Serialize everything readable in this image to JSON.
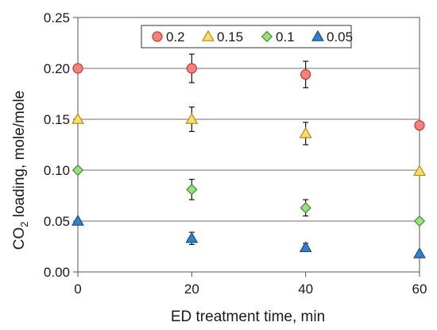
{
  "chart_data": {
    "type": "scatter",
    "title": "",
    "xlabel": "ED treatment time, min",
    "ylabel": {
      "prefix": "CO",
      "subscript": "2",
      "suffix": " loading, mole/mole"
    },
    "xlim": [
      0,
      60
    ],
    "ylim": [
      0,
      0.25
    ],
    "x_ticks": [
      0,
      20,
      40,
      60
    ],
    "x_tick_labels": [
      "0",
      "20",
      "40",
      "60"
    ],
    "y_ticks": [
      0,
      0.05,
      0.1,
      0.15,
      0.2,
      0.25
    ],
    "y_tick_labels": [
      "0.00",
      "0.05",
      "0.10",
      "0.15",
      "0.20",
      "0.25"
    ],
    "reference_lines": [
      0.05,
      0.1,
      0.15,
      0.2
    ],
    "reference_line_color": "#8c8c8c",
    "legend": {
      "position": "top-center",
      "border": true
    },
    "series": [
      {
        "name": "0.2",
        "marker": "circle",
        "fill": "#f48080",
        "stroke": "#c0392b",
        "points": [
          {
            "x": 0,
            "y": 0.2,
            "err": null
          },
          {
            "x": 20,
            "y": 0.2,
            "err": 0.014
          },
          {
            "x": 40,
            "y": 0.194,
            "err": 0.013
          },
          {
            "x": 60,
            "y": 0.144,
            "err": null
          }
        ]
      },
      {
        "name": "0.15",
        "marker": "triangle",
        "fill": "#ffe066",
        "stroke": "#b8860b",
        "points": [
          {
            "x": 0,
            "y": 0.15,
            "err": null
          },
          {
            "x": 20,
            "y": 0.15,
            "err": 0.012
          },
          {
            "x": 40,
            "y": 0.136,
            "err": 0.011
          },
          {
            "x": 60,
            "y": 0.099,
            "err": null
          }
        ]
      },
      {
        "name": "0.1",
        "marker": "diamond",
        "fill": "#9be07f",
        "stroke": "#3c8d2f",
        "points": [
          {
            "x": 0,
            "y": 0.1,
            "err": null
          },
          {
            "x": 20,
            "y": 0.081,
            "err": 0.01
          },
          {
            "x": 40,
            "y": 0.063,
            "err": 0.008
          },
          {
            "x": 60,
            "y": 0.05,
            "err": null
          }
        ]
      },
      {
        "name": "0.05",
        "marker": "triangle",
        "fill": "#2f80d0",
        "stroke": "#1a4f8a",
        "points": [
          {
            "x": 0,
            "y": 0.05,
            "err": null
          },
          {
            "x": 20,
            "y": 0.033,
            "err": 0.006
          },
          {
            "x": 40,
            "y": 0.024,
            "err": 0.004
          },
          {
            "x": 60,
            "y": 0.018,
            "err": null
          }
        ]
      }
    ]
  }
}
